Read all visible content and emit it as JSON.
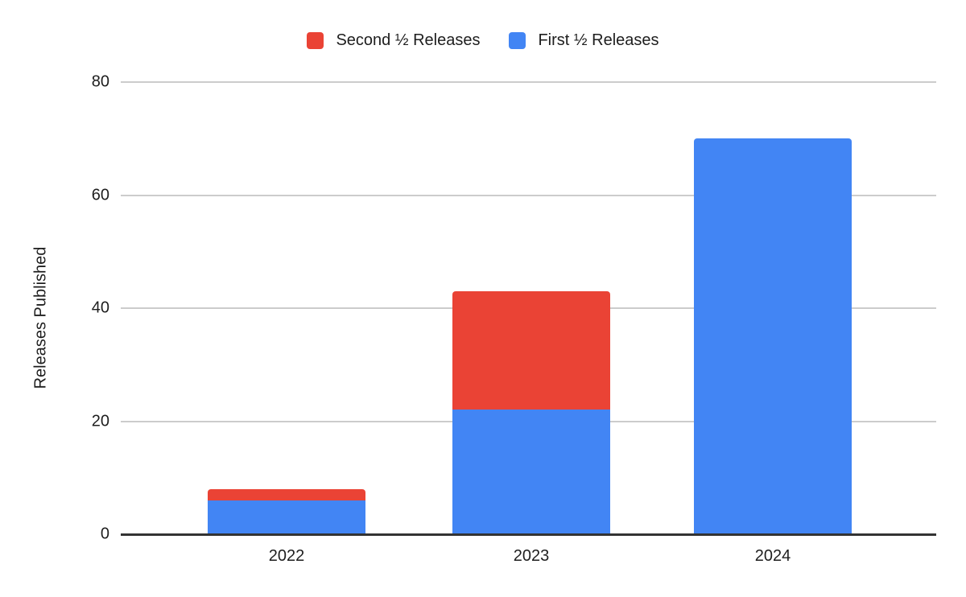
{
  "chart_data": {
    "type": "bar",
    "stacked": true,
    "title": "",
    "ylabel": "Releases Published",
    "xlabel": "",
    "categories": [
      "2022",
      "2023",
      "2024"
    ],
    "series": [
      {
        "name": "Second ½ Releases",
        "color": "#EA4335",
        "values": [
          2,
          21,
          0
        ]
      },
      {
        "name": "First ½ Releases",
        "color": "#4285F4",
        "values": [
          6,
          22,
          70
        ]
      }
    ],
    "totals": [
      8,
      43,
      70
    ],
    "ylim": [
      0,
      80
    ],
    "yticks": [
      0,
      20,
      40,
      60,
      80
    ],
    "grid": true,
    "legend_position": "top"
  },
  "colors": {
    "background": "#ffffff",
    "gridline": "#cccccc",
    "axis_line": "#333333",
    "text": "#1e1e1e"
  }
}
